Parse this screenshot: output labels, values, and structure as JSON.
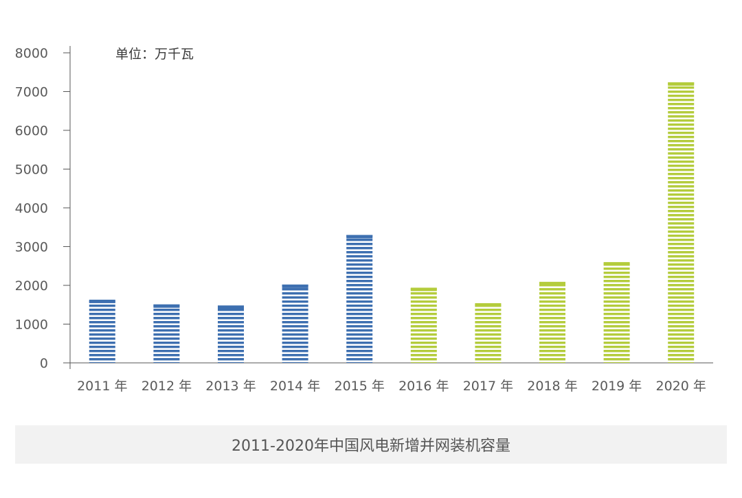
{
  "chart_data": {
    "type": "bar",
    "categories": [
      "2011 年",
      "2012 年",
      "2013 年",
      "2014 年",
      "2015 年",
      "2016 年",
      "2017 年",
      "2018 年",
      "2019 年",
      "2020 年"
    ],
    "values": [
      1630,
      1510,
      1480,
      2020,
      3300,
      1940,
      1540,
      2090,
      2600,
      7240
    ],
    "unit_label": "单位：万千瓦",
    "yticks": [
      0,
      1000,
      2000,
      3000,
      4000,
      5000,
      6000,
      7000,
      8000
    ],
    "ylim": [
      0,
      8000
    ],
    "colors": [
      "#3d6fb0",
      "#3d6fb0",
      "#3d6fb0",
      "#3d6fb0",
      "#3d6fb0",
      "#b4cc3c",
      "#b4cc3c",
      "#b4cc3c",
      "#b4cc3c",
      "#b4cc3c"
    ],
    "grid": false
  },
  "caption": "2011-2020年中国风电新增并网装机容量"
}
